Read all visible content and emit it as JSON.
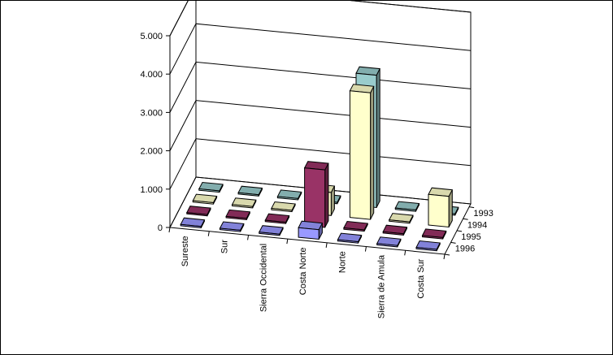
{
  "chart_data": {
    "type": "bar",
    "title": "",
    "xlabel": "",
    "ylabel": "",
    "ylim": [
      0,
      5000
    ],
    "y_ticks": [
      0,
      1000,
      2000,
      3000,
      4000,
      5000
    ],
    "y_tick_labels": [
      "0",
      "1.000",
      "2.000",
      "3.000",
      "4.000",
      "5.000"
    ],
    "grid": true,
    "legend": "none",
    "projection": "3d",
    "categories": [
      "Sureste",
      "Sur",
      "Sierra Occidental",
      "Costa Norte",
      "Norte",
      "Sierra de Amula",
      "Costa Sur"
    ],
    "series": [
      {
        "name": "1993",
        "color": "#99CCCC",
        "values": [
          0,
          0,
          0,
          0,
          3450,
          0,
          0
        ]
      },
      {
        "name": "1994",
        "color": "#FFFFCC",
        "values": [
          0,
          0,
          0,
          600,
          3300,
          0,
          800
        ]
      },
      {
        "name": "1995",
        "color": "#993366",
        "values": [
          0,
          0,
          0,
          1500,
          0,
          0,
          0
        ]
      },
      {
        "name": "1996",
        "color": "#9999FF",
        "values": [
          0,
          0,
          0,
          250,
          0,
          0,
          0
        ]
      }
    ]
  }
}
